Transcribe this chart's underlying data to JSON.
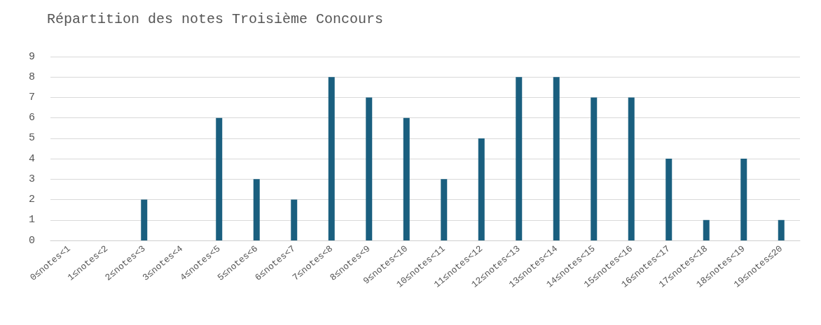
{
  "chart_data": {
    "type": "bar",
    "title": "Répartition des notes Troisième Concours",
    "categories": [
      "0≤notes<1",
      "1≤notes<2",
      "2≤notes<3",
      "3≤notes<4",
      "4≤notes<5",
      "5≤notes<6",
      "6≤notes<7",
      "7≤notes<8",
      "8≤notes<9",
      "9≤notes<10",
      "10≤notes<11",
      "11≤notes<12",
      "12≤notes<13",
      "13≤notes<14",
      "14≤notes<15",
      "15≤notes<16",
      "16≤notes<17",
      "17≤notes<18",
      "18≤notes<19",
      "19≤notes≤20"
    ],
    "values": [
      0,
      0,
      2,
      0,
      6,
      3,
      2,
      8,
      7,
      6,
      3,
      5,
      8,
      8,
      7,
      7,
      4,
      1,
      4,
      1
    ],
    "color": "#1a5f7f",
    "ylim": [
      0,
      9
    ],
    "yticks": [
      0,
      1,
      2,
      3,
      4,
      5,
      6,
      7,
      8,
      9
    ],
    "grid": "y"
  }
}
